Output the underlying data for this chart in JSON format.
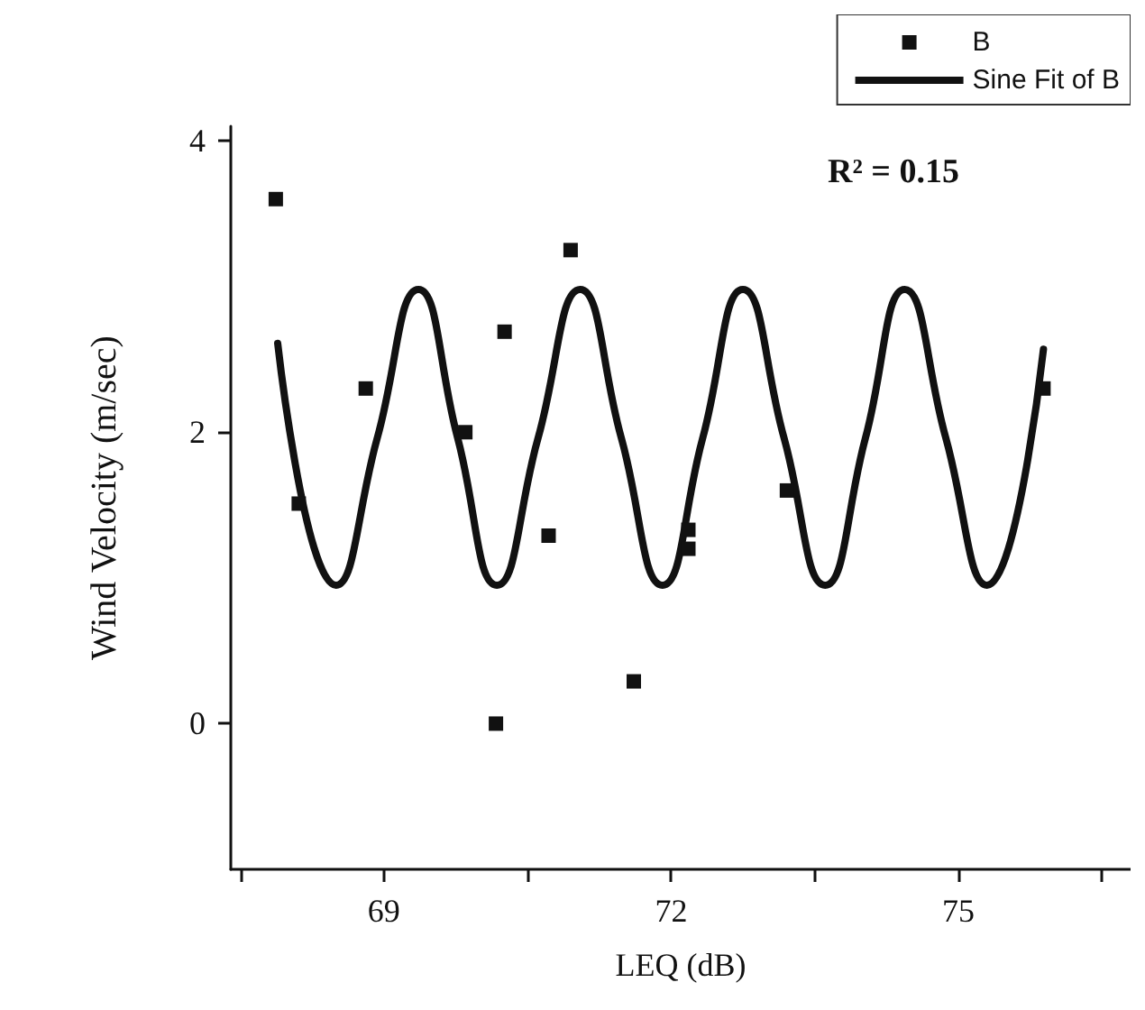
{
  "chart_data": {
    "type": "scatter",
    "xlabel": "LEQ (dB)",
    "ylabel": "Wind Velocity (m/sec)",
    "annotations": [
      "R² = 0.15"
    ],
    "xlim": [
      67.4,
      76.8
    ],
    "xticks": [
      {
        "value": 67.5,
        "label": null
      },
      69,
      {
        "value": 70.5,
        "label": null
      },
      72,
      {
        "value": 73.5,
        "label": null
      },
      75,
      {
        "value": 76.5,
        "label": null
      }
    ],
    "ylim": [
      -1,
      4.1
    ],
    "yticks": [
      0,
      2,
      4
    ],
    "grid": false,
    "legend": "top right",
    "marker": "square",
    "series": [
      {
        "name": "B",
        "color": "#111111",
        "x": [
          67.87,
          68.11,
          68.81,
          69.85,
          70.26,
          70.17,
          70.72,
          70.95,
          71.61,
          72.18,
          72.18,
          73.21,
          75.89
        ],
        "values": [
          3.6,
          1.51,
          2.3,
          2.0,
          2.69,
          0,
          1.29,
          3.25,
          0.29,
          1.33,
          1.2,
          1.6,
          2.3
        ]
      },
      {
        "name": "Sine Fit of B",
        "type": "line",
        "marker": "none",
        "line_style": "solid",
        "color": "#111111",
        "x": [
          67.89,
          68.5,
          68.93,
          69.36,
          69.77,
          70.18,
          70.61,
          71.05,
          71.48,
          71.91,
          72.33,
          72.75,
          73.18,
          73.61,
          74.03,
          74.44,
          74.87,
          75.3,
          75.89
        ],
        "values": [
          2.61,
          0.95,
          1.96,
          2.98,
          1.96,
          0.95,
          1.96,
          2.98,
          1.96,
          0.95,
          1.96,
          2.98,
          1.96,
          0.95,
          1.96,
          2.98,
          1.96,
          0.95,
          2.57
        ]
      }
    ]
  }
}
